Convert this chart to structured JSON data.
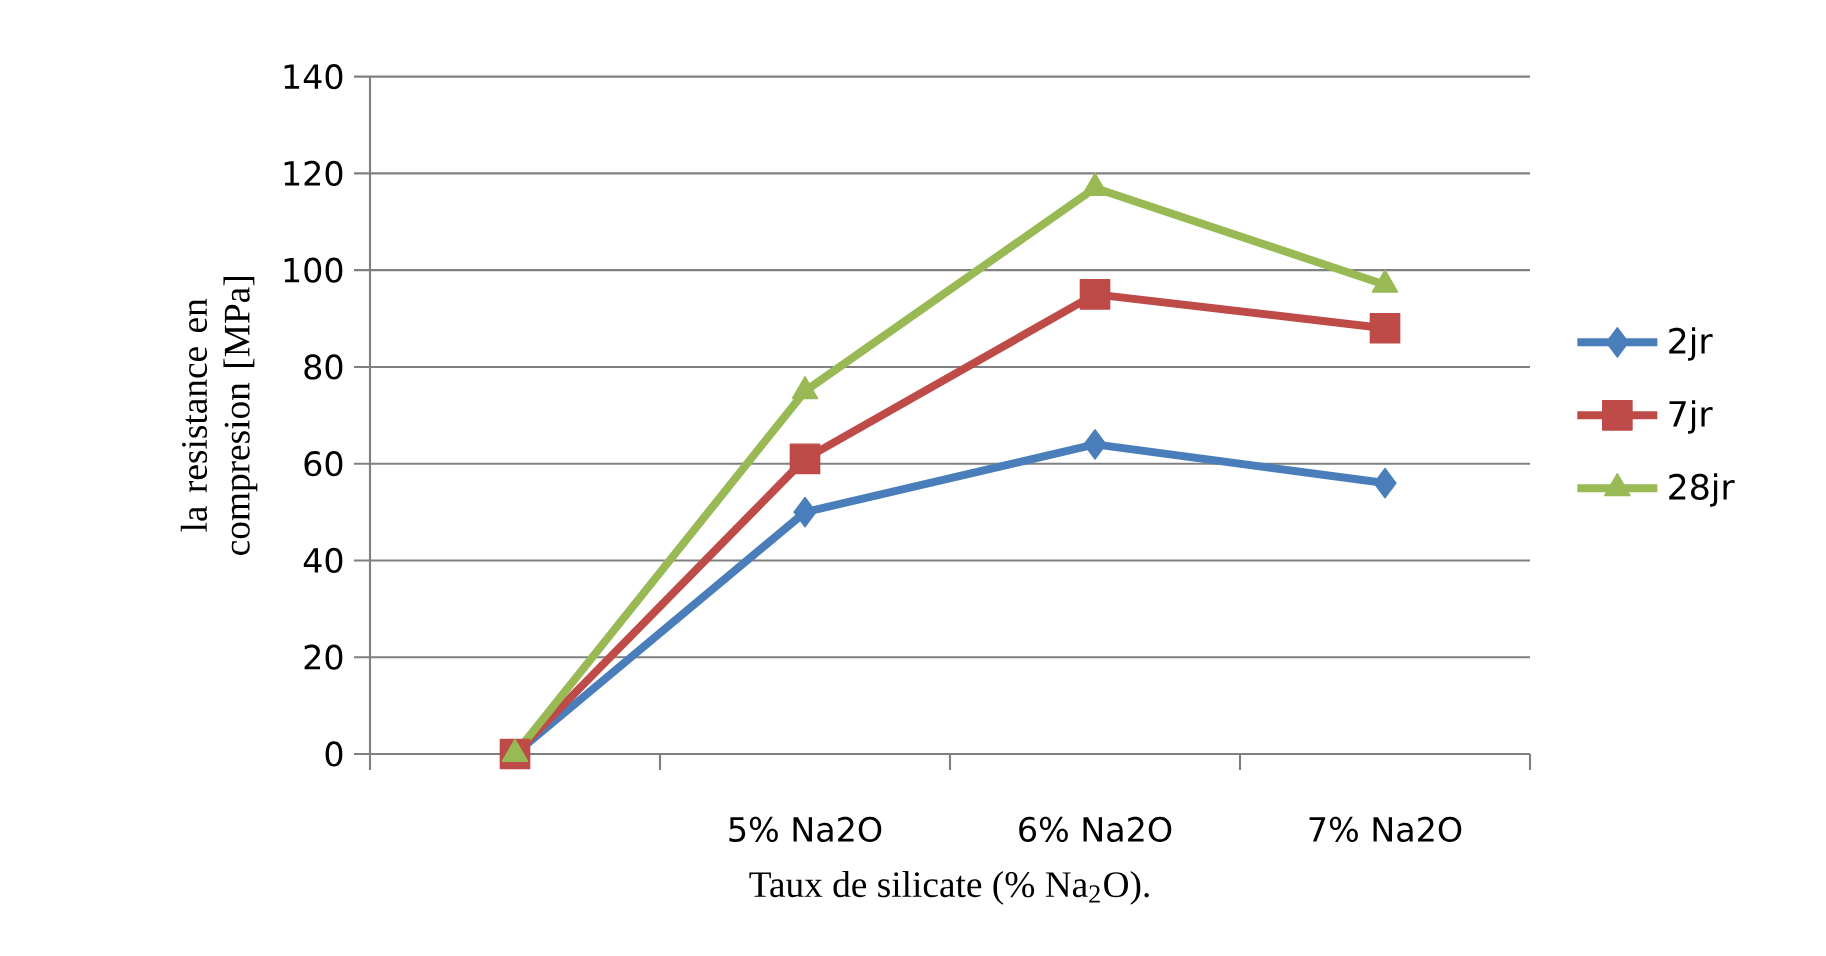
{
  "chart_data": {
    "type": "line",
    "xlabel": "Taux de silicate (% Na$_{2}$O).",
    "ylabel": "la resistance en compresion [MPa]",
    "categories": [
      null,
      "5% Na2O",
      "6% Na2O",
      "7% Na2O"
    ],
    "series": [
      {
        "name": "2jr",
        "color": "#4a7ebb",
        "marker": "diamond",
        "values": [
          0,
          50,
          64,
          56
        ]
      },
      {
        "name": "7jr",
        "color": "#be4b48",
        "marker": "square",
        "values": [
          0,
          61,
          95,
          88
        ]
      },
      {
        "name": "28jr",
        "color": "#98b954",
        "marker": "triangle",
        "values": [
          0,
          75,
          117,
          97
        ]
      }
    ],
    "ylim": [
      0,
      140
    ],
    "yticks": [
      0,
      20,
      40,
      60,
      80,
      100,
      120,
      140
    ],
    "grid": "y",
    "legend": "right",
    "line_style": "solid"
  }
}
